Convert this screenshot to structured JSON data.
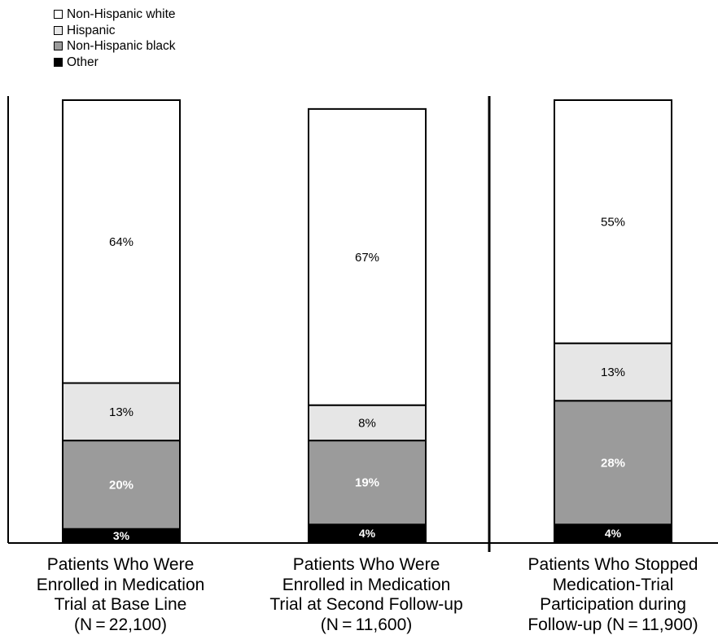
{
  "chart_data": {
    "type": "bar",
    "stacked": true,
    "categories": [
      "Patients Who Were Enrolled in Medication Trial at Base Line (N = 22,100)",
      "Patients Who Were Enrolled in Medication Trial at Second Follow-up (N = 11,600)",
      "Patients Who Stopped Medication-Trial Participation during Follow-up (N = 11,900)"
    ],
    "category_lines": [
      [
        "Patients Who Were",
        "Enrolled in Medication",
        "Trial at Base Line",
        "(N = 22,100)"
      ],
      [
        "Patients Who Were",
        "Enrolled in Medication",
        "Trial at Second Follow-up",
        "(N = 11,600)"
      ],
      [
        "Patients Who Stopped",
        "Medication-Trial",
        "Participation during",
        "Follow-up (N = 11,900)"
      ]
    ],
    "series": [
      {
        "name": "Other",
        "values": [
          3,
          4,
          4
        ],
        "labels": [
          "3%",
          "4%",
          "4%"
        ],
        "color": "#000000",
        "label_color": "#ffffff"
      },
      {
        "name": "Non-Hispanic black",
        "values": [
          20,
          19,
          28
        ],
        "labels": [
          "20%",
          "19%",
          "28%"
        ],
        "color": "#9b9b9b",
        "label_color": "#ffffff"
      },
      {
        "name": "Hispanic",
        "values": [
          13,
          8,
          13
        ],
        "labels": [
          "13%",
          "8%",
          "13%"
        ],
        "color": "#e6e6e6",
        "label_color": "#000000"
      },
      {
        "name": "Non-Hispanic white",
        "values": [
          64,
          67,
          55
        ],
        "labels": [
          "64%",
          "67%",
          "55%"
        ],
        "color": "#ffffff",
        "label_color": "#000000"
      }
    ],
    "legend": {
      "position": "top-left",
      "order": [
        "Non-Hispanic white",
        "Hispanic",
        "Non-Hispanic black",
        "Other"
      ]
    },
    "ylim": [
      0,
      100
    ],
    "grid": false,
    "title": "",
    "xlabel": "",
    "ylabel": ""
  }
}
